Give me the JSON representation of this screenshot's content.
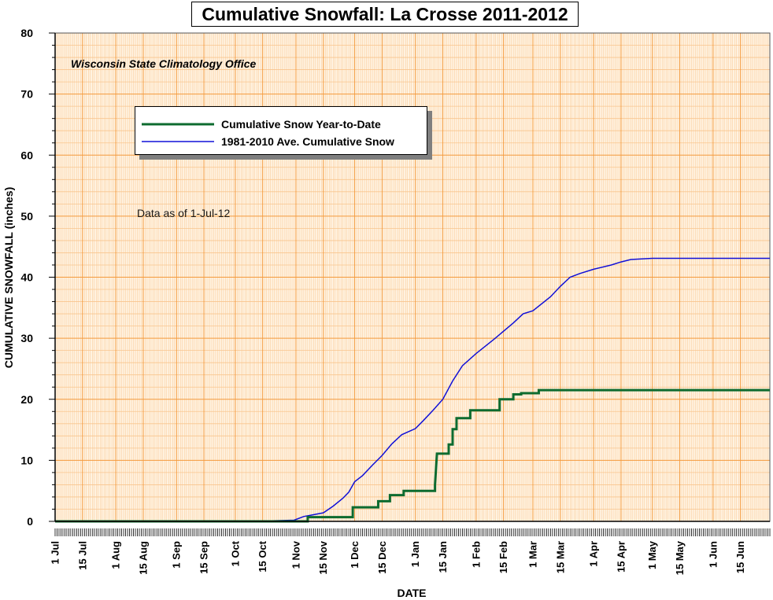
{
  "chart_data": {
    "type": "line",
    "title": "Cumulative Snowfall: La Crosse 2011-2012",
    "annotations": {
      "source": "Wisconsin State Climatology Office",
      "data_as_of": "Data as of 1-Jul-12"
    },
    "xlabel": "DATE",
    "ylabel": "CUMULATIVE SNOWFALL (inches)",
    "xlim": [
      "2011-07-01",
      "2012-06-30"
    ],
    "ylim": [
      0,
      80
    ],
    "y_ticks": [
      0,
      10,
      20,
      30,
      40,
      50,
      60,
      70,
      80
    ],
    "x_tick_labels": [
      {
        "date": "2011-07-01",
        "label": "1 Jul"
      },
      {
        "date": "2011-07-15",
        "label": "15 Jul"
      },
      {
        "date": "2011-08-01",
        "label": "1 Aug"
      },
      {
        "date": "2011-08-15",
        "label": "15 Aug"
      },
      {
        "date": "2011-09-01",
        "label": "1 Sep"
      },
      {
        "date": "2011-09-15",
        "label": "15 Sep"
      },
      {
        "date": "2011-10-01",
        "label": "1 Oct"
      },
      {
        "date": "2011-10-15",
        "label": "15 Oct"
      },
      {
        "date": "2011-11-01",
        "label": "1 Nov"
      },
      {
        "date": "2011-11-15",
        "label": "15 Nov"
      },
      {
        "date": "2011-12-01",
        "label": "1 Dec"
      },
      {
        "date": "2011-12-15",
        "label": "15 Dec"
      },
      {
        "date": "2012-01-01",
        "label": "1 Jan"
      },
      {
        "date": "2012-01-15",
        "label": "15 Jan"
      },
      {
        "date": "2012-02-01",
        "label": "1 Feb"
      },
      {
        "date": "2012-02-15",
        "label": "15 Feb"
      },
      {
        "date": "2012-03-01",
        "label": "1 Mar"
      },
      {
        "date": "2012-03-15",
        "label": "15 Mar"
      },
      {
        "date": "2012-04-01",
        "label": "1 Apr"
      },
      {
        "date": "2012-04-15",
        "label": "15 Apr"
      },
      {
        "date": "2012-05-01",
        "label": "1 May"
      },
      {
        "date": "2012-05-15",
        "label": "15 May"
      },
      {
        "date": "2012-06-01",
        "label": "1 Jun"
      },
      {
        "date": "2012-06-15",
        "label": "15 Jun"
      }
    ],
    "grid": true,
    "legend": "upper-left",
    "colors": {
      "plot_background": "#fff3e2",
      "major_grid": "#f49a3c",
      "minor_grid": "#f9c58d",
      "season_line": "#0d6b2f",
      "normal_line": "#1010d8"
    },
    "series": [
      {
        "name": "Cumulative Snow Year-to-Date",
        "style": "step",
        "points": [
          [
            "2011-07-01",
            0
          ],
          [
            "2011-11-07",
            0
          ],
          [
            "2011-11-07",
            0.7
          ],
          [
            "2011-11-30",
            0.7
          ],
          [
            "2011-11-30",
            2.3
          ],
          [
            "2011-12-13",
            2.3
          ],
          [
            "2011-12-13",
            3.3
          ],
          [
            "2011-12-19",
            3.3
          ],
          [
            "2011-12-19",
            4.3
          ],
          [
            "2011-12-26",
            4.3
          ],
          [
            "2011-12-26",
            5.0
          ],
          [
            "2012-01-11",
            5.0
          ],
          [
            "2012-01-11",
            6.0
          ],
          [
            "2012-01-12",
            11.1
          ],
          [
            "2012-01-18",
            11.1
          ],
          [
            "2012-01-18",
            12.6
          ],
          [
            "2012-01-20",
            12.6
          ],
          [
            "2012-01-20",
            15.1
          ],
          [
            "2012-01-22",
            15.1
          ],
          [
            "2012-01-22",
            16.9
          ],
          [
            "2012-01-29",
            16.9
          ],
          [
            "2012-01-29",
            18.2
          ],
          [
            "2012-02-13",
            18.2
          ],
          [
            "2012-02-13",
            20.0
          ],
          [
            "2012-02-20",
            20.0
          ],
          [
            "2012-02-20",
            20.8
          ],
          [
            "2012-02-24",
            20.8
          ],
          [
            "2012-02-24",
            21.0
          ],
          [
            "2012-03-04",
            21.0
          ],
          [
            "2012-03-04",
            21.5
          ],
          [
            "2012-06-30",
            21.5
          ]
        ]
      },
      {
        "name": "1981-2010 Ave. Cumulative Snow",
        "style": "line",
        "points": [
          [
            "2011-07-01",
            0
          ],
          [
            "2011-10-15",
            0
          ],
          [
            "2011-10-20",
            0.1
          ],
          [
            "2011-10-31",
            0.2
          ],
          [
            "2011-11-05",
            0.8
          ],
          [
            "2011-11-10",
            1.1
          ],
          [
            "2011-11-15",
            1.4
          ],
          [
            "2011-11-20",
            2.5
          ],
          [
            "2011-11-25",
            3.8
          ],
          [
            "2011-11-28",
            4.8
          ],
          [
            "2011-12-01",
            6.5
          ],
          [
            "2011-12-05",
            7.5
          ],
          [
            "2011-12-10",
            9.2
          ],
          [
            "2011-12-15",
            10.8
          ],
          [
            "2011-12-20",
            12.7
          ],
          [
            "2011-12-25",
            14.2
          ],
          [
            "2012-01-01",
            15.2
          ],
          [
            "2012-01-05",
            16.5
          ],
          [
            "2012-01-10",
            18.2
          ],
          [
            "2012-01-15",
            20.0
          ],
          [
            "2012-01-20",
            23.0
          ],
          [
            "2012-01-25",
            25.5
          ],
          [
            "2012-02-01",
            27.5
          ],
          [
            "2012-02-10",
            29.8
          ],
          [
            "2012-02-20",
            32.5
          ],
          [
            "2012-02-25",
            34.0
          ],
          [
            "2012-03-01",
            34.5
          ],
          [
            "2012-03-10",
            36.8
          ],
          [
            "2012-03-15",
            38.5
          ],
          [
            "2012-03-20",
            40.0
          ],
          [
            "2012-03-25",
            40.6
          ],
          [
            "2012-04-01",
            41.3
          ],
          [
            "2012-04-10",
            42.0
          ],
          [
            "2012-04-15",
            42.5
          ],
          [
            "2012-04-20",
            42.9
          ],
          [
            "2012-05-01",
            43.1
          ],
          [
            "2012-06-30",
            43.1
          ]
        ]
      }
    ]
  }
}
